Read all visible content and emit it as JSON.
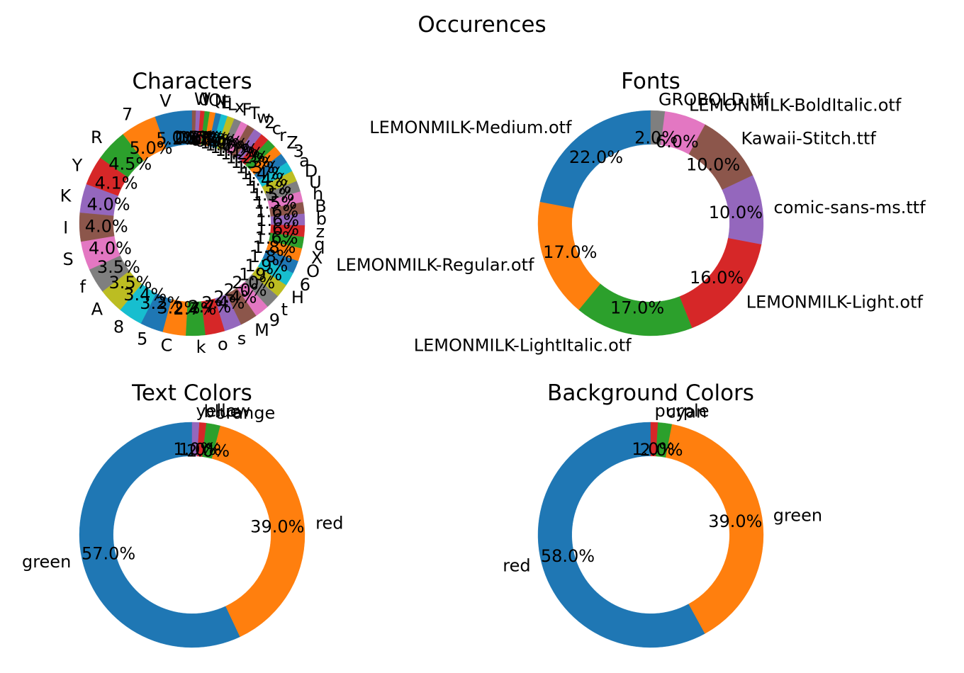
{
  "figure": {
    "title": "Occurences"
  },
  "palette": [
    "#1f77b4",
    "#ff7f0e",
    "#2ca02c",
    "#d62728",
    "#9467bd",
    "#8c564b",
    "#e377c2",
    "#7f7f7f",
    "#bcbd22",
    "#17becf"
  ],
  "chart_data": [
    {
      "type": "pie",
      "title": "Characters",
      "donut": true,
      "start_angle": 90,
      "counterclock": true,
      "categories": [
        "V",
        "7",
        "R",
        "Y",
        "K",
        "I",
        "S",
        "f",
        "A",
        "8",
        "5",
        "C",
        "k",
        "o",
        "s",
        "M",
        "9",
        "t",
        "H",
        "6",
        "O",
        "X",
        "q",
        "z",
        "b",
        "B",
        "h",
        "U",
        "D",
        "a",
        "3",
        "Z",
        "r",
        "c",
        "2",
        "w",
        "T",
        "F",
        "x",
        "L",
        "E",
        "N",
        "Q",
        "l",
        "0",
        "W"
      ],
      "values": [
        5.2,
        5.0,
        4.5,
        4.1,
        4.0,
        4.0,
        4.0,
        3.5,
        3.5,
        3.4,
        3.2,
        3.2,
        2.7,
        2.7,
        2.4,
        2.4,
        2.0,
        2.0,
        1.9,
        1.9,
        1.8,
        1.8,
        1.6,
        1.6,
        1.6,
        1.6,
        1.5,
        1.5,
        1.5,
        1.4,
        1.4,
        1.3,
        1.3,
        1.2,
        1.2,
        1.1,
        1.0,
        1.0,
        1.0,
        0.9,
        0.8,
        0.8,
        0.7,
        0.6,
        0.6,
        0.5
      ],
      "percent_labels": [
        "5.2%",
        "5.0%",
        "4.5%",
        "4.1%",
        "4.0%",
        "4.0%",
        "4.0%",
        "3.5%",
        "3.5%",
        "3.4%",
        "3.2%",
        "3.2%",
        "2.7%",
        "2.7%",
        "2.4%",
        "2.4%",
        "2.0%",
        "2.0%",
        "1.9%",
        "1.9%",
        "1.8%",
        "1.8%",
        "1.6%",
        "1.6%",
        "1.6%",
        "1.6%",
        "1.5%",
        "1.5%",
        "1.5%",
        "1.4%",
        "1.4%",
        "1.3%",
        "1.3%",
        "1.2%",
        "1.2%",
        "1.1%",
        "1.0%",
        "1.0%",
        "1.0%",
        "0.9%",
        "0.8%",
        "0.8%",
        "0.7%",
        "0.6%",
        "0.6%",
        "0.5%"
      ]
    },
    {
      "type": "pie",
      "title": "Fonts",
      "donut": true,
      "start_angle": 90,
      "counterclock": true,
      "categories": [
        "LEMONMILK-Medium.otf",
        "LEMONMILK-Regular.otf",
        "LEMONMILK-LightItalic.otf",
        "LEMONMILK-Light.otf",
        "comic-sans-ms.ttf",
        "Kawaii-Stitch.ttf",
        "LEMONMILK-BoldItalic.otf",
        "GROBOLD.ttf"
      ],
      "values": [
        22.0,
        17.0,
        17.0,
        16.0,
        10.0,
        10.0,
        6.0,
        2.0
      ],
      "percent_labels": [
        "22.0%",
        "17.0%",
        "17.0%",
        "16.0%",
        "10.0%",
        "10.0%",
        "6.0%",
        "2.0%"
      ]
    },
    {
      "type": "pie",
      "title": "Text Colors",
      "donut": true,
      "start_angle": 90,
      "counterclock": true,
      "categories": [
        "green",
        "red",
        "orange",
        "blue",
        "yellow"
      ],
      "values": [
        57.0,
        39.0,
        2.0,
        1.0,
        1.0
      ],
      "percent_labels": [
        "57.0%",
        "39.0%",
        "2.0%",
        "1.0%",
        "1.0%"
      ]
    },
    {
      "type": "pie",
      "title": "Background Colors",
      "donut": true,
      "start_angle": 90,
      "counterclock": true,
      "categories": [
        "red",
        "green",
        "cyan",
        "purple"
      ],
      "values": [
        58.0,
        39.0,
        2.0,
        1.0
      ],
      "percent_labels": [
        "58.0%",
        "39.0%",
        "2.0%",
        "1.0%"
      ]
    }
  ]
}
